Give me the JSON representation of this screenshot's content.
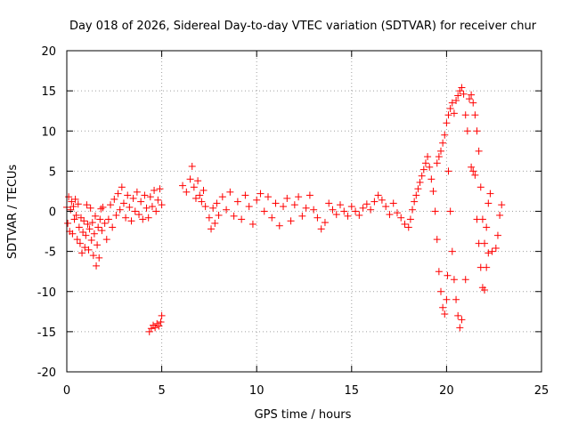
{
  "chart_data": {
    "type": "scatter",
    "title": "Day 018 of 2026, Sidereal Day-to-day VTEC variation (SDTVAR) for receiver chur",
    "xlabel": "GPS time / hours",
    "ylabel": "SDTVAR / TECUs",
    "xlim": [
      0,
      25
    ],
    "ylim": [
      -20,
      20
    ],
    "x_ticks": [
      0,
      5,
      10,
      15,
      20,
      25
    ],
    "y_ticks": [
      -20,
      -15,
      -10,
      -5,
      0,
      5,
      10,
      15,
      20
    ],
    "grid": true,
    "marker": "plus",
    "color": "#ff0000",
    "series": [
      {
        "name": "SDTVAR",
        "points": [
          [
            0.0,
            0.5
          ],
          [
            0.05,
            -1.5
          ],
          [
            0.1,
            1.8
          ],
          [
            0.15,
            -2.5
          ],
          [
            0.2,
            0.2
          ],
          [
            0.25,
            1.2
          ],
          [
            0.3,
            -2.8
          ],
          [
            0.35,
            0.6
          ],
          [
            0.4,
            -1.0
          ],
          [
            0.45,
            1.5
          ],
          [
            0.5,
            -0.5
          ],
          [
            0.55,
            -3.5
          ],
          [
            0.6,
            0.9
          ],
          [
            0.65,
            -2.0
          ],
          [
            0.7,
            -4.0
          ],
          [
            0.75,
            -0.8
          ],
          [
            0.8,
            -5.2
          ],
          [
            0.85,
            -2.6
          ],
          [
            0.9,
            -1.2
          ],
          [
            0.95,
            -4.5
          ],
          [
            1.0,
            -3.0
          ],
          [
            1.05,
            0.8
          ],
          [
            1.1,
            -1.6
          ],
          [
            1.15,
            -4.8
          ],
          [
            1.2,
            -2.2
          ],
          [
            1.25,
            0.4
          ],
          [
            1.3,
            -3.6
          ],
          [
            1.35,
            -1.4
          ],
          [
            1.4,
            -5.5
          ],
          [
            1.45,
            -2.8
          ],
          [
            1.5,
            -0.6
          ],
          [
            1.55,
            -6.8
          ],
          [
            1.6,
            -4.2
          ],
          [
            1.65,
            -2.0
          ],
          [
            1.7,
            -5.8
          ],
          [
            1.75,
            -1.0
          ],
          [
            1.8,
            0.3
          ],
          [
            1.85,
            -2.4
          ],
          [
            1.9,
            0.5
          ],
          [
            2.0,
            -1.5
          ],
          [
            2.1,
            -3.5
          ],
          [
            2.2,
            -1.0
          ],
          [
            2.3,
            0.8
          ],
          [
            2.4,
            -2.0
          ],
          [
            2.5,
            1.5
          ],
          [
            2.6,
            -0.5
          ],
          [
            2.7,
            2.2
          ],
          [
            2.8,
            0.2
          ],
          [
            2.9,
            3.0
          ],
          [
            3.0,
            1.0
          ],
          [
            3.1,
            -0.8
          ],
          [
            3.2,
            2.0
          ],
          [
            3.3,
            0.5
          ],
          [
            3.4,
            -1.2
          ],
          [
            3.5,
            1.6
          ],
          [
            3.6,
            0.0
          ],
          [
            3.7,
            2.4
          ],
          [
            3.8,
            -0.4
          ],
          [
            3.9,
            1.2
          ],
          [
            4.0,
            -1.0
          ],
          [
            4.1,
            2.0
          ],
          [
            4.2,
            0.4
          ],
          [
            4.3,
            -0.8
          ],
          [
            4.4,
            1.8
          ],
          [
            4.5,
            0.6
          ],
          [
            4.6,
            2.6
          ],
          [
            4.7,
            0.0
          ],
          [
            4.8,
            1.4
          ],
          [
            4.9,
            2.8
          ],
          [
            5.0,
            0.8
          ],
          [
            4.35,
            -15.0
          ],
          [
            4.45,
            -14.6
          ],
          [
            4.55,
            -14.2
          ],
          [
            4.65,
            -14.5
          ],
          [
            4.75,
            -14.0
          ],
          [
            4.85,
            -14.3
          ],
          [
            4.95,
            -13.8
          ],
          [
            5.0,
            -13.0
          ],
          [
            6.1,
            3.2
          ],
          [
            6.3,
            2.4
          ],
          [
            6.5,
            4.0
          ],
          [
            6.6,
            5.6
          ],
          [
            6.7,
            3.0
          ],
          [
            6.8,
            1.6
          ],
          [
            6.9,
            3.8
          ],
          [
            7.0,
            2.0
          ],
          [
            7.1,
            1.2
          ],
          [
            7.2,
            2.6
          ],
          [
            7.3,
            0.6
          ],
          [
            7.5,
            -0.8
          ],
          [
            7.6,
            -2.2
          ],
          [
            7.7,
            0.4
          ],
          [
            7.8,
            -1.5
          ],
          [
            7.9,
            1.0
          ],
          [
            8.0,
            -0.5
          ],
          [
            8.2,
            1.8
          ],
          [
            8.4,
            0.2
          ],
          [
            8.6,
            2.4
          ],
          [
            8.8,
            -0.6
          ],
          [
            9.0,
            1.2
          ],
          [
            9.2,
            -1.0
          ],
          [
            9.4,
            2.0
          ],
          [
            9.6,
            0.6
          ],
          [
            9.8,
            -1.6
          ],
          [
            10.0,
            1.4
          ],
          [
            10.2,
            2.2
          ],
          [
            10.4,
            0.0
          ],
          [
            10.6,
            1.8
          ],
          [
            10.8,
            -0.8
          ],
          [
            11.0,
            1.0
          ],
          [
            11.2,
            -1.8
          ],
          [
            11.4,
            0.6
          ],
          [
            11.6,
            1.6
          ],
          [
            11.8,
            -1.2
          ],
          [
            12.0,
            0.8
          ],
          [
            12.2,
            1.8
          ],
          [
            12.4,
            -0.6
          ],
          [
            12.6,
            0.4
          ],
          [
            12.8,
            2.0
          ],
          [
            13.0,
            0.2
          ],
          [
            13.2,
            -0.8
          ],
          [
            13.4,
            -2.2
          ],
          [
            13.6,
            -1.4
          ],
          [
            13.8,
            1.0
          ],
          [
            14.0,
            0.2
          ],
          [
            14.2,
            -0.4
          ],
          [
            14.4,
            0.8
          ],
          [
            14.6,
            0.0
          ],
          [
            14.8,
            -0.6
          ],
          [
            15.0,
            0.6
          ],
          [
            15.2,
            0.0
          ],
          [
            15.4,
            -0.5
          ],
          [
            15.6,
            0.4
          ],
          [
            15.8,
            0.9
          ],
          [
            16.0,
            0.2
          ],
          [
            16.2,
            1.2
          ],
          [
            16.4,
            2.0
          ],
          [
            16.6,
            1.4
          ],
          [
            16.8,
            0.6
          ],
          [
            17.0,
            -0.4
          ],
          [
            17.2,
            1.0
          ],
          [
            17.4,
            -0.2
          ],
          [
            17.6,
            -0.8
          ],
          [
            17.8,
            -1.6
          ],
          [
            18.0,
            -2.0
          ],
          [
            18.1,
            -1.0
          ],
          [
            18.2,
            0.2
          ],
          [
            18.3,
            1.2
          ],
          [
            18.4,
            2.0
          ],
          [
            18.5,
            2.8
          ],
          [
            18.6,
            3.6
          ],
          [
            18.7,
            4.4
          ],
          [
            18.8,
            5.2
          ],
          [
            18.9,
            6.0
          ],
          [
            19.0,
            6.8
          ],
          [
            19.1,
            5.5
          ],
          [
            19.2,
            4.0
          ],
          [
            19.3,
            2.5
          ],
          [
            19.4,
            0.0
          ],
          [
            19.5,
            -3.5
          ],
          [
            19.6,
            -7.5
          ],
          [
            19.7,
            -10.0
          ],
          [
            19.8,
            -12.0
          ],
          [
            19.9,
            -12.8
          ],
          [
            20.0,
            -11.0
          ],
          [
            20.05,
            -8.0
          ],
          [
            19.5,
            6.0
          ],
          [
            19.6,
            6.8
          ],
          [
            19.7,
            7.5
          ],
          [
            19.8,
            8.5
          ],
          [
            19.9,
            9.5
          ],
          [
            20.0,
            11.0
          ],
          [
            20.1,
            12.0
          ],
          [
            20.2,
            12.8
          ],
          [
            20.3,
            13.5
          ],
          [
            20.4,
            12.2
          ],
          [
            20.5,
            13.8
          ],
          [
            20.6,
            14.4
          ],
          [
            20.7,
            15.0
          ],
          [
            20.8,
            15.4
          ],
          [
            20.9,
            14.6
          ],
          [
            21.0,
            12.0
          ],
          [
            21.1,
            10.0
          ],
          [
            20.1,
            5.0
          ],
          [
            20.2,
            0.0
          ],
          [
            20.3,
            -5.0
          ],
          [
            20.4,
            -8.5
          ],
          [
            20.5,
            -11.0
          ],
          [
            20.6,
            -13.0
          ],
          [
            20.7,
            -14.5
          ],
          [
            20.8,
            -13.5
          ],
          [
            21.0,
            -8.5
          ],
          [
            21.2,
            14.0
          ],
          [
            21.3,
            14.5
          ],
          [
            21.4,
            13.5
          ],
          [
            21.5,
            12.0
          ],
          [
            21.6,
            10.0
          ],
          [
            21.7,
            7.5
          ],
          [
            21.8,
            3.0
          ],
          [
            21.9,
            -1.0
          ],
          [
            22.0,
            -4.0
          ],
          [
            22.1,
            -2.0
          ],
          [
            22.2,
            1.0
          ],
          [
            22.3,
            2.2
          ],
          [
            21.3,
            5.5
          ],
          [
            21.4,
            5.0
          ],
          [
            21.5,
            4.5
          ],
          [
            21.6,
            -1.0
          ],
          [
            21.7,
            -4.0
          ],
          [
            21.8,
            -7.0
          ],
          [
            21.9,
            -9.5
          ],
          [
            22.0,
            -9.8
          ],
          [
            22.1,
            -7.0
          ],
          [
            22.2,
            -5.2
          ],
          [
            22.4,
            -5.0
          ],
          [
            22.6,
            -4.6
          ],
          [
            22.7,
            -3.0
          ],
          [
            22.8,
            -0.5
          ],
          [
            22.9,
            0.8
          ]
        ]
      }
    ]
  }
}
